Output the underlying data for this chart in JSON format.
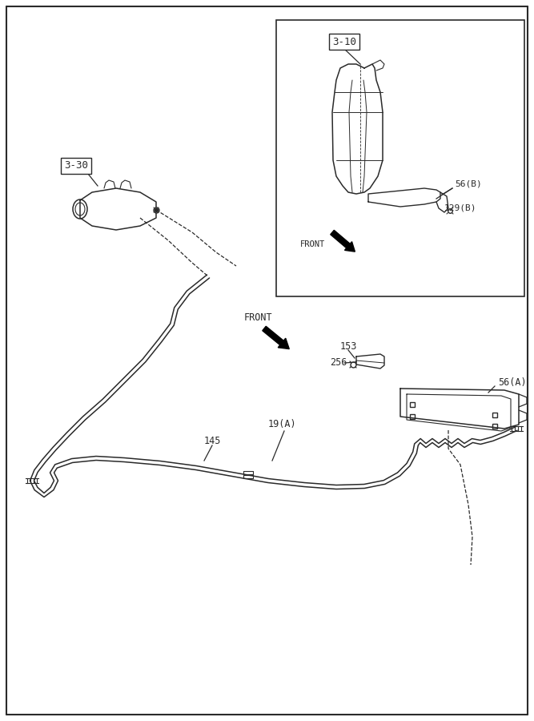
{
  "bg_color": "#ffffff",
  "line_color": "#2a2a2a",
  "fig_w": 6.67,
  "fig_h": 9.0,
  "dpi": 100,
  "labels": {
    "3_10": "3-10",
    "3_30": "3-30",
    "56A": "56(A)",
    "56B": "56(B)",
    "129B": "129(B)",
    "153": "153",
    "256": "256",
    "19A": "19(A)",
    "145": "145",
    "front_main": "FRONT",
    "front_inset": "FRONT"
  }
}
